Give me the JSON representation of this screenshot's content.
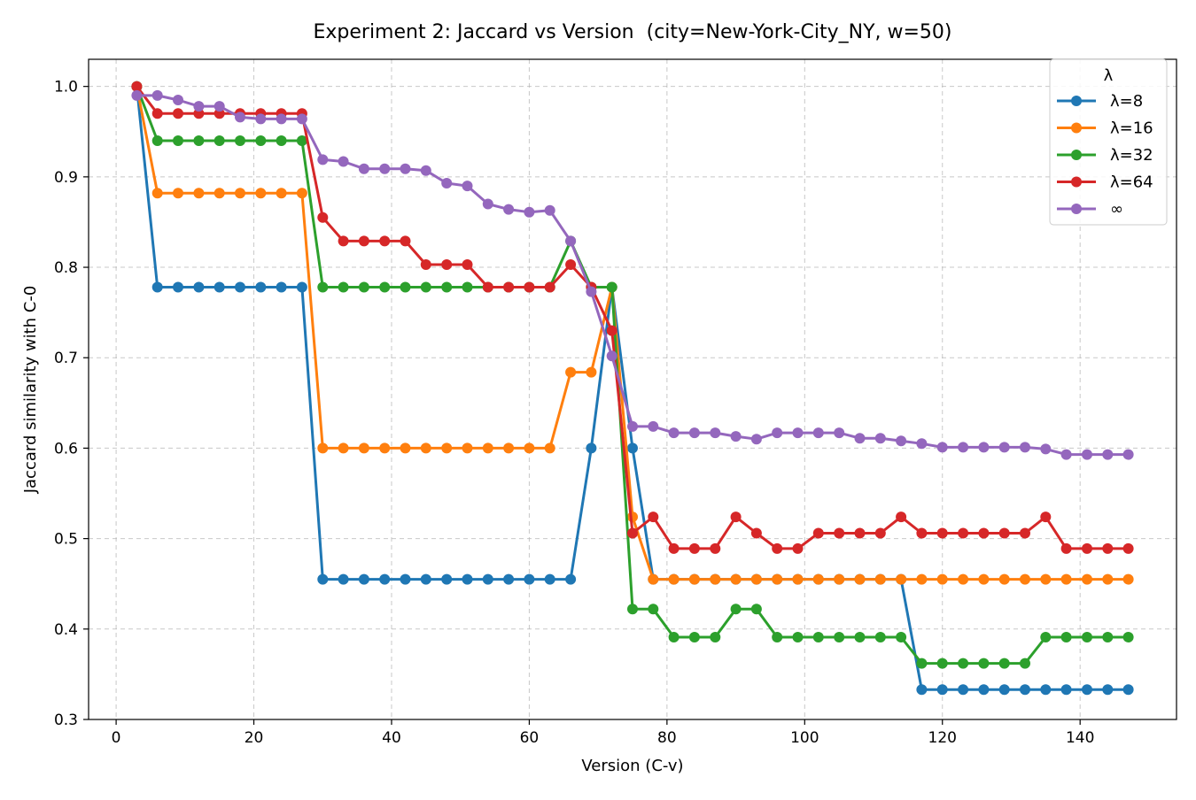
{
  "chart_data": {
    "type": "line",
    "title": "Experiment 2: Jaccard vs Version  (city=New-York-City_NY, w=50)",
    "xlabel": "Version (C-v)",
    "ylabel": "Jaccard similarity with C-0",
    "xlim": [
      -4,
      154
    ],
    "ylim": [
      0.3,
      1.03
    ],
    "xticks": [
      0,
      20,
      40,
      60,
      80,
      100,
      120,
      140
    ],
    "yticks": [
      0.3,
      0.4,
      0.5,
      0.6,
      0.7,
      0.8,
      0.9,
      1.0
    ],
    "xtick_labels": [
      "0",
      "20",
      "40",
      "60",
      "80",
      "100",
      "120",
      "140"
    ],
    "ytick_labels": [
      "0.3",
      "0.4",
      "0.5",
      "0.6",
      "0.7",
      "0.8",
      "0.9",
      "1.0"
    ],
    "grid": true,
    "legend_title": "λ",
    "legend_position": "top-right",
    "x": [
      3,
      6,
      9,
      12,
      15,
      18,
      21,
      24,
      27,
      30,
      33,
      36,
      39,
      42,
      45,
      48,
      51,
      54,
      57,
      60,
      63,
      66,
      69,
      72,
      75,
      78,
      81,
      84,
      87,
      90,
      93,
      96,
      99,
      102,
      105,
      108,
      111,
      114,
      117,
      120,
      123,
      126,
      129,
      132,
      135,
      138,
      141,
      144,
      147
    ],
    "series": [
      {
        "name": "λ=8",
        "color": "#1f77b4",
        "values": [
          1.0,
          0.778,
          0.778,
          0.778,
          0.778,
          0.778,
          0.778,
          0.778,
          0.778,
          0.455,
          0.455,
          0.455,
          0.455,
          0.455,
          0.455,
          0.455,
          0.455,
          0.455,
          0.455,
          0.455,
          0.455,
          0.455,
          0.6,
          0.778,
          0.6,
          0.455,
          0.455,
          0.455,
          0.455,
          0.455,
          0.455,
          0.455,
          0.455,
          0.455,
          0.455,
          0.455,
          0.455,
          0.455,
          0.333,
          0.333,
          0.333,
          0.333,
          0.333,
          0.333,
          0.333,
          0.333,
          0.333,
          0.333,
          0.333
        ]
      },
      {
        "name": "λ=16",
        "color": "#ff7f0e",
        "values": [
          1.0,
          0.882,
          0.882,
          0.882,
          0.882,
          0.882,
          0.882,
          0.882,
          0.882,
          0.6,
          0.6,
          0.6,
          0.6,
          0.6,
          0.6,
          0.6,
          0.6,
          0.6,
          0.6,
          0.6,
          0.6,
          0.684,
          0.684,
          0.778,
          0.524,
          0.455,
          0.455,
          0.455,
          0.455,
          0.455,
          0.455,
          0.455,
          0.455,
          0.455,
          0.455,
          0.455,
          0.455,
          0.455,
          0.455,
          0.455,
          0.455,
          0.455,
          0.455,
          0.455,
          0.455,
          0.455,
          0.455,
          0.455,
          0.455
        ]
      },
      {
        "name": "λ=32",
        "color": "#2ca02c",
        "values": [
          1.0,
          0.94,
          0.94,
          0.94,
          0.94,
          0.94,
          0.94,
          0.94,
          0.94,
          0.778,
          0.778,
          0.778,
          0.778,
          0.778,
          0.778,
          0.778,
          0.778,
          0.778,
          0.778,
          0.778,
          0.778,
          0.829,
          0.778,
          0.778,
          0.422,
          0.422,
          0.391,
          0.391,
          0.391,
          0.422,
          0.422,
          0.391,
          0.391,
          0.391,
          0.391,
          0.391,
          0.391,
          0.391,
          0.362,
          0.362,
          0.362,
          0.362,
          0.362,
          0.362,
          0.391,
          0.391,
          0.391,
          0.391,
          0.391
        ]
      },
      {
        "name": "λ=64",
        "color": "#d62728",
        "values": [
          1.0,
          0.97,
          0.97,
          0.97,
          0.97,
          0.97,
          0.97,
          0.97,
          0.97,
          0.855,
          0.829,
          0.829,
          0.829,
          0.829,
          0.803,
          0.803,
          0.803,
          0.778,
          0.778,
          0.778,
          0.778,
          0.803,
          0.778,
          0.73,
          0.506,
          0.524,
          0.489,
          0.489,
          0.489,
          0.524,
          0.506,
          0.489,
          0.489,
          0.506,
          0.506,
          0.506,
          0.506,
          0.524,
          0.506,
          0.506,
          0.506,
          0.506,
          0.506,
          0.506,
          0.524,
          0.489,
          0.489,
          0.489,
          0.489
        ]
      },
      {
        "name": "∞",
        "color": "#9467bd",
        "values": [
          0.99,
          0.99,
          0.985,
          0.978,
          0.978,
          0.966,
          0.964,
          0.964,
          0.964,
          0.919,
          0.917,
          0.909,
          0.909,
          0.909,
          0.907,
          0.893,
          0.89,
          0.87,
          0.864,
          0.861,
          0.863,
          0.829,
          0.773,
          0.702,
          0.624,
          0.624,
          0.617,
          0.617,
          0.617,
          0.613,
          0.61,
          0.617,
          0.617,
          0.617,
          0.617,
          0.611,
          0.611,
          0.608,
          0.605,
          0.601,
          0.601,
          0.601,
          0.601,
          0.601,
          0.599,
          0.593,
          0.593,
          0.593,
          0.593
        ]
      }
    ]
  }
}
